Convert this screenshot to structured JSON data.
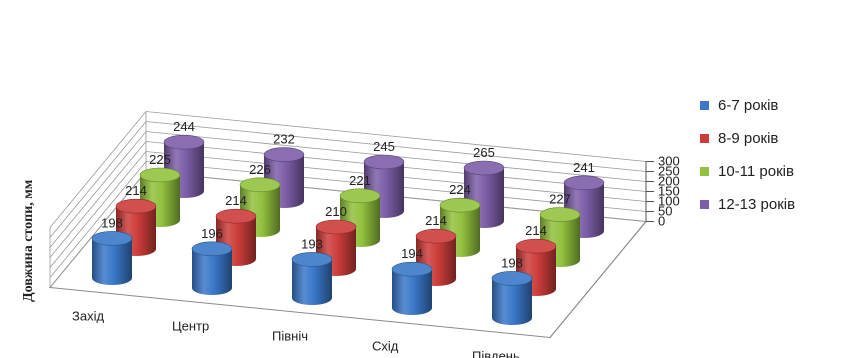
{
  "chart_data": {
    "type": "bar",
    "style": "3d-cylinder",
    "categories": [
      "Захід",
      "Центр",
      "Північ",
      "Схід",
      "Південь"
    ],
    "series": [
      {
        "name": "6-7 років",
        "values": [
          198,
          196,
          193,
          194,
          198
        ],
        "color": "#3a78c9"
      },
      {
        "name": "8-9 років",
        "values": [
          214,
          214,
          210,
          214,
          214
        ],
        "color": "#cc3d3a"
      },
      {
        "name": "10-11 років",
        "values": [
          225,
          226,
          221,
          224,
          227
        ],
        "color": "#92c23e"
      },
      {
        "name": "12-13 років",
        "values": [
          244,
          232,
          245,
          265,
          241
        ],
        "color": "#7d5ea8"
      }
    ],
    "ylabel": "Довжина стопи, мм",
    "xlabel": "",
    "ylim": [
      0,
      300
    ],
    "yticks": [
      "0",
      "50",
      "100",
      "150",
      "200",
      "250",
      "300"
    ],
    "grid": true,
    "legend": "right"
  }
}
